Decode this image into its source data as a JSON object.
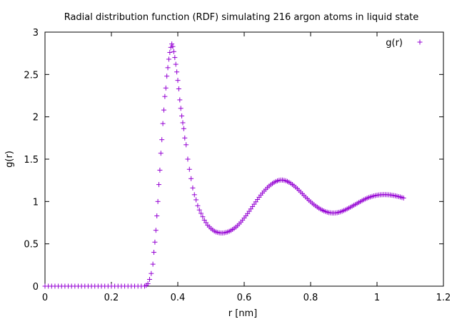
{
  "chart_data": {
    "type": "scatter",
    "title": "Radial distribution function (RDF) simulating 216 argon atoms in liquid state",
    "xlabel": "r [nm]",
    "ylabel": "g(r)",
    "xlim": [
      0,
      1.2
    ],
    "ylim": [
      0,
      3
    ],
    "x_ticks": [
      0,
      0.2,
      0.4,
      0.6,
      0.8,
      1,
      1.2
    ],
    "x_tick_labels": [
      "0",
      "0.2",
      "0.4",
      "0.6",
      "0.8",
      "1",
      "1.2"
    ],
    "y_ticks": [
      0,
      0.5,
      1,
      1.5,
      2,
      2.5,
      3
    ],
    "y_tick_labels": [
      "0",
      "0.5",
      "1",
      "1.5",
      "2",
      "2.5",
      "3"
    ],
    "grid": false,
    "legend_position": "top-right",
    "marker": "plus",
    "series": [
      {
        "name": "g(r)",
        "color": "#9400d3",
        "points": [
          [
            0.0,
            0.0
          ],
          [
            0.01,
            0.0
          ],
          [
            0.02,
            0.0
          ],
          [
            0.03,
            0.0
          ],
          [
            0.04,
            0.0
          ],
          [
            0.05,
            0.0
          ],
          [
            0.06,
            0.0
          ],
          [
            0.07,
            0.0
          ],
          [
            0.08,
            0.0
          ],
          [
            0.09,
            0.0
          ],
          [
            0.1,
            0.0
          ],
          [
            0.11,
            0.0
          ],
          [
            0.12,
            0.0
          ],
          [
            0.13,
            0.0
          ],
          [
            0.14,
            0.0
          ],
          [
            0.15,
            0.0
          ],
          [
            0.16,
            0.0
          ],
          [
            0.17,
            0.0
          ],
          [
            0.18,
            0.0
          ],
          [
            0.19,
            0.0
          ],
          [
            0.2,
            0.0
          ],
          [
            0.21,
            0.0
          ],
          [
            0.22,
            0.0
          ],
          [
            0.23,
            0.0
          ],
          [
            0.24,
            0.0
          ],
          [
            0.25,
            0.0
          ],
          [
            0.26,
            0.0
          ],
          [
            0.27,
            0.0
          ],
          [
            0.28,
            0.0
          ],
          [
            0.29,
            0.0
          ],
          [
            0.3,
            0.0
          ],
          [
            0.305,
            0.01
          ],
          [
            0.31,
            0.03
          ],
          [
            0.315,
            0.08
          ],
          [
            0.32,
            0.15
          ],
          [
            0.325,
            0.26
          ],
          [
            0.328,
            0.4
          ],
          [
            0.331,
            0.52
          ],
          [
            0.334,
            0.66
          ],
          [
            0.337,
            0.83
          ],
          [
            0.34,
            1.0
          ],
          [
            0.343,
            1.2
          ],
          [
            0.346,
            1.37
          ],
          [
            0.349,
            1.57
          ],
          [
            0.352,
            1.73
          ],
          [
            0.355,
            1.92
          ],
          [
            0.358,
            2.08
          ],
          [
            0.361,
            2.24
          ],
          [
            0.364,
            2.34
          ],
          [
            0.367,
            2.48
          ],
          [
            0.37,
            2.58
          ],
          [
            0.373,
            2.68
          ],
          [
            0.376,
            2.76
          ],
          [
            0.379,
            2.82
          ],
          [
            0.382,
            2.86
          ],
          [
            0.385,
            2.83
          ],
          [
            0.388,
            2.77
          ],
          [
            0.391,
            2.7
          ],
          [
            0.394,
            2.62
          ],
          [
            0.397,
            2.53
          ],
          [
            0.4,
            2.43
          ],
          [
            0.403,
            2.33
          ],
          [
            0.406,
            2.2
          ],
          [
            0.409,
            2.1
          ],
          [
            0.412,
            2.01
          ],
          [
            0.415,
            1.93
          ],
          [
            0.418,
            1.86
          ],
          [
            0.421,
            1.75
          ],
          [
            0.425,
            1.67
          ],
          [
            0.43,
            1.5
          ],
          [
            0.435,
            1.38
          ],
          [
            0.44,
            1.27
          ],
          [
            0.445,
            1.16
          ],
          [
            0.45,
            1.08
          ],
          [
            0.455,
            1.02
          ],
          [
            0.46,
            0.95
          ],
          [
            0.465,
            0.9
          ],
          [
            0.47,
            0.86
          ],
          [
            0.475,
            0.82
          ],
          [
            0.48,
            0.78
          ],
          [
            0.485,
            0.75
          ],
          [
            0.49,
            0.72
          ],
          [
            0.495,
            0.7
          ],
          [
            0.5,
            0.68
          ],
          [
            0.505,
            0.665
          ],
          [
            0.51,
            0.65
          ],
          [
            0.515,
            0.64
          ],
          [
            0.52,
            0.635
          ],
          [
            0.525,
            0.63
          ],
          [
            0.53,
            0.628
          ],
          [
            0.535,
            0.628
          ],
          [
            0.54,
            0.63
          ],
          [
            0.545,
            0.635
          ],
          [
            0.55,
            0.64
          ],
          [
            0.555,
            0.648
          ],
          [
            0.56,
            0.658
          ],
          [
            0.565,
            0.67
          ],
          [
            0.57,
            0.683
          ],
          [
            0.575,
            0.698
          ],
          [
            0.58,
            0.715
          ],
          [
            0.585,
            0.735
          ],
          [
            0.59,
            0.757
          ],
          [
            0.595,
            0.78
          ],
          [
            0.6,
            0.805
          ],
          [
            0.605,
            0.83
          ],
          [
            0.61,
            0.857
          ],
          [
            0.615,
            0.884
          ],
          [
            0.62,
            0.912
          ],
          [
            0.625,
            0.94
          ],
          [
            0.63,
            0.968
          ],
          [
            0.635,
            0.996
          ],
          [
            0.64,
            1.024
          ],
          [
            0.645,
            1.05
          ],
          [
            0.65,
            1.076
          ],
          [
            0.655,
            1.1
          ],
          [
            0.66,
            1.123
          ],
          [
            0.665,
            1.144
          ],
          [
            0.67,
            1.164
          ],
          [
            0.675,
            1.182
          ],
          [
            0.68,
            1.198
          ],
          [
            0.685,
            1.212
          ],
          [
            0.69,
            1.225
          ],
          [
            0.695,
            1.236
          ],
          [
            0.7,
            1.244
          ],
          [
            0.705,
            1.25
          ],
          [
            0.71,
            1.253
          ],
          [
            0.715,
            1.253
          ],
          [
            0.72,
            1.25
          ],
          [
            0.725,
            1.245
          ],
          [
            0.73,
            1.237
          ],
          [
            0.735,
            1.227
          ],
          [
            0.74,
            1.215
          ],
          [
            0.745,
            1.201
          ],
          [
            0.75,
            1.186
          ],
          [
            0.755,
            1.169
          ],
          [
            0.76,
            1.151
          ],
          [
            0.765,
            1.132
          ],
          [
            0.77,
            1.112
          ],
          [
            0.775,
            1.092
          ],
          [
            0.78,
            1.072
          ],
          [
            0.785,
            1.052
          ],
          [
            0.79,
            1.033
          ],
          [
            0.795,
            1.014
          ],
          [
            0.8,
            0.996
          ],
          [
            0.805,
            0.979
          ],
          [
            0.81,
            0.963
          ],
          [
            0.815,
            0.948
          ],
          [
            0.82,
            0.934
          ],
          [
            0.825,
            0.921
          ],
          [
            0.83,
            0.909
          ],
          [
            0.835,
            0.898
          ],
          [
            0.84,
            0.889
          ],
          [
            0.845,
            0.881
          ],
          [
            0.85,
            0.874
          ],
          [
            0.855,
            0.869
          ],
          [
            0.86,
            0.866
          ],
          [
            0.865,
            0.864
          ],
          [
            0.87,
            0.864
          ],
          [
            0.875,
            0.865
          ],
          [
            0.88,
            0.868
          ],
          [
            0.885,
            0.872
          ],
          [
            0.89,
            0.878
          ],
          [
            0.895,
            0.885
          ],
          [
            0.9,
            0.893
          ],
          [
            0.905,
            0.902
          ],
          [
            0.91,
            0.912
          ],
          [
            0.915,
            0.922
          ],
          [
            0.92,
            0.933
          ],
          [
            0.925,
            0.944
          ],
          [
            0.93,
            0.955
          ],
          [
            0.935,
            0.966
          ],
          [
            0.94,
            0.977
          ],
          [
            0.945,
            0.988
          ],
          [
            0.95,
            0.999
          ],
          [
            0.955,
            1.01
          ],
          [
            0.96,
            1.02
          ],
          [
            0.965,
            1.03
          ],
          [
            0.97,
            1.039
          ],
          [
            0.975,
            1.047
          ],
          [
            0.98,
            1.054
          ],
          [
            0.985,
            1.06
          ],
          [
            0.99,
            1.066
          ],
          [
            0.995,
            1.07
          ],
          [
            1.0,
            1.074
          ],
          [
            1.005,
            1.077
          ],
          [
            1.01,
            1.079
          ],
          [
            1.015,
            1.08
          ],
          [
            1.02,
            1.081
          ],
          [
            1.025,
            1.081
          ],
          [
            1.03,
            1.08
          ],
          [
            1.035,
            1.079
          ],
          [
            1.04,
            1.077
          ],
          [
            1.045,
            1.074
          ],
          [
            1.05,
            1.071
          ],
          [
            1.055,
            1.067
          ],
          [
            1.06,
            1.063
          ],
          [
            1.065,
            1.058
          ],
          [
            1.07,
            1.053
          ],
          [
            1.075,
            1.047
          ],
          [
            1.08,
            1.041
          ]
        ]
      }
    ]
  }
}
